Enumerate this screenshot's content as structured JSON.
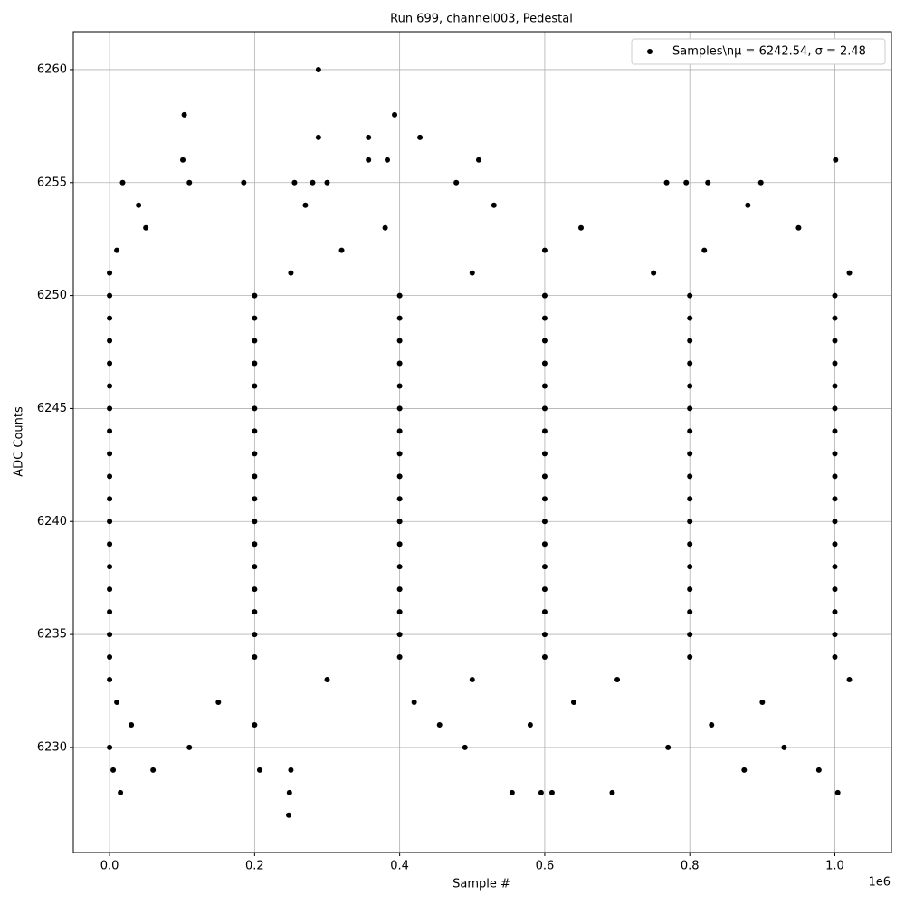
{
  "chart_data": {
    "type": "scatter",
    "title": "Run 699, channel003, Pedestal",
    "x_label": "Sample #",
    "y_label": "ADC Counts",
    "x_offset_label": "1e6",
    "xlim": [
      -50000,
      1078000
    ],
    "ylim": [
      6225.35,
      6261.68
    ],
    "xticks": [
      {
        "value": 0,
        "label": "0.0"
      },
      {
        "value": 200000,
        "label": "0.2"
      },
      {
        "value": 400000,
        "label": "0.4"
      },
      {
        "value": 600000,
        "label": "0.6"
      },
      {
        "value": 800000,
        "label": "0.8"
      },
      {
        "value": 1000000,
        "label": "1.0"
      }
    ],
    "yticks": [
      6230,
      6235,
      6240,
      6245,
      6250,
      6255,
      6260
    ],
    "grid": true,
    "legend": "upper right",
    "series": [
      {
        "name": "Samples\\nμ = 6242.54, σ = 2.48",
        "color": "#000000",
        "x": [
          0,
          200000,
          400000,
          600000,
          800000,
          1000000,
          0,
          200000,
          400000,
          600000,
          800000,
          1000000,
          0,
          200000,
          400000,
          600000,
          800000,
          1000000,
          0,
          200000,
          400000,
          600000,
          800000,
          1000000,
          0,
          200000,
          400000,
          600000,
          800000,
          1000000,
          0,
          200000,
          400000,
          600000,
          800000,
          1000000,
          0,
          200000,
          400000,
          600000,
          800000,
          1000000,
          0,
          200000,
          400000,
          600000,
          800000,
          1000000,
          0,
          200000,
          400000,
          600000,
          800000,
          1000000,
          0,
          200000,
          400000,
          600000,
          800000,
          1000000,
          0,
          200000,
          400000,
          600000,
          800000,
          1000000,
          0,
          200000,
          400000,
          600000,
          800000,
          1000000,
          0,
          200000,
          400000,
          600000,
          800000,
          1000000,
          0,
          200000,
          400000,
          600000,
          800000,
          1000000,
          0,
          200000,
          400000,
          600000,
          800000,
          1000000,
          0,
          200000,
          400000,
          600000,
          800000,
          1000000,
          0,
          200000,
          400000,
          600000,
          800000,
          1000000,
          0,
          300000,
          500000,
          700000,
          1020000,
          10000,
          150000,
          420000,
          640000,
          900000,
          30000,
          200000,
          455000,
          580000,
          830000,
          0,
          250000,
          500000,
          750000,
          1020000,
          10000,
          320000,
          600000,
          820000,
          50000,
          380000,
          650000,
          950000,
          40000,
          270000,
          530000,
          880000,
          288000,
          103000,
          393000,
          101000,
          288000,
          357000,
          428000,
          357000,
          383000,
          509000,
          1001000,
          18000,
          110000,
          185000,
          255000,
          280000,
          300000,
          478000,
          768000,
          795000,
          825000,
          898000,
          247000,
          248000,
          15000,
          555000,
          595000,
          610000,
          693000,
          1004000,
          5000,
          60000,
          207000,
          250000,
          875000,
          978000,
          0,
          110000,
          490000,
          770000,
          930000
        ],
        "values": [
          6234,
          6234,
          6234,
          6234,
          6234,
          6234,
          6235,
          6235,
          6235,
          6235,
          6235,
          6235,
          6236,
          6236,
          6236,
          6236,
          6236,
          6236,
          6237,
          6237,
          6237,
          6237,
          6237,
          6237,
          6238,
          6238,
          6238,
          6238,
          6238,
          6238,
          6239,
          6239,
          6239,
          6239,
          6239,
          6239,
          6240,
          6240,
          6240,
          6240,
          6240,
          6240,
          6241,
          6241,
          6241,
          6241,
          6241,
          6241,
          6242,
          6242,
          6242,
          6242,
          6242,
          6242,
          6243,
          6243,
          6243,
          6243,
          6243,
          6243,
          6244,
          6244,
          6244,
          6244,
          6244,
          6244,
          6245,
          6245,
          6245,
          6245,
          6245,
          6245,
          6246,
          6246,
          6246,
          6246,
          6246,
          6246,
          6247,
          6247,
          6247,
          6247,
          6247,
          6247,
          6248,
          6248,
          6248,
          6248,
          6248,
          6248,
          6249,
          6249,
          6249,
          6249,
          6249,
          6249,
          6250,
          6250,
          6250,
          6250,
          6250,
          6250,
          6233,
          6233,
          6233,
          6233,
          6233,
          6232,
          6232,
          6232,
          6232,
          6232,
          6231,
          6231,
          6231,
          6231,
          6231,
          6251,
          6251,
          6251,
          6251,
          6251,
          6252,
          6252,
          6252,
          6252,
          6253,
          6253,
          6253,
          6253,
          6254,
          6254,
          6254,
          6254,
          6260,
          6258,
          6258,
          6256,
          6257,
          6257,
          6257,
          6256,
          6256,
          6256,
          6256,
          6255,
          6255,
          6255,
          6255,
          6255,
          6255,
          6255,
          6255,
          6255,
          6255,
          6255,
          6227,
          6228,
          6228,
          6228,
          6228,
          6228,
          6228,
          6228,
          6229,
          6229,
          6229,
          6229,
          6229,
          6229,
          6230,
          6230,
          6230,
          6230,
          6230
        ]
      }
    ]
  }
}
